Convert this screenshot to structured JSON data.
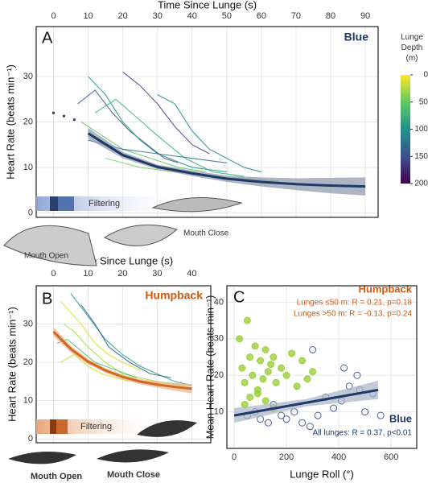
{
  "chart_data": [
    {
      "type": "line",
      "panel": "A",
      "species": "Blue",
      "x_label": "Time Since Lunge (s)",
      "y_label": "Heart Rate (beats min⁻¹)",
      "xlim": [
        -5,
        93.7
      ],
      "xticks": [
        0,
        10,
        20,
        30,
        40,
        50,
        60,
        70,
        80,
        90
      ],
      "ylim": [
        -1,
        41
      ],
      "yticks": [
        0,
        10,
        20,
        30
      ],
      "grid": true,
      "filtering": "Filtering",
      "mouth_open": "Mouth Open",
      "mouth_close": "Mouth Close",
      "fit": {
        "color": "#1f3a66",
        "band_color": "#8a96ad",
        "x": [
          10,
          20,
          30,
          40,
          50,
          60,
          70,
          80,
          90
        ],
        "values": [
          17.5,
          12.7,
          10.1,
          8.7,
          7.5,
          6.8,
          6.3,
          6.0,
          5.8
        ],
        "lower": [
          16.3,
          12.0,
          9.6,
          8.1,
          6.8,
          5.8,
          5.0,
          4.3,
          3.8
        ],
        "upper": [
          18.7,
          13.4,
          10.6,
          9.3,
          8.2,
          7.8,
          7.6,
          7.7,
          7.8
        ]
      },
      "extrapolation": {
        "x": [
          0,
          3,
          6
        ],
        "values": [
          22,
          21.3,
          20.5
        ]
      },
      "traces": [
        {
          "color": "#3b528b",
          "x": [
            7,
            12,
            17,
            22,
            27,
            32,
            36
          ],
          "values": [
            24,
            27,
            22,
            18,
            15,
            12,
            11
          ]
        },
        {
          "color": "#21918c",
          "x": [
            10,
            15,
            20,
            25,
            30,
            40,
            50
          ],
          "values": [
            30,
            26,
            20,
            16,
            13,
            10,
            9
          ]
        },
        {
          "color": "#2fb47c",
          "x": [
            12,
            18,
            24,
            30,
            38,
            46,
            55
          ],
          "values": [
            22,
            25,
            21,
            17,
            12,
            9,
            8
          ]
        },
        {
          "color": "#5ec962",
          "x": [
            8,
            14,
            20,
            28,
            36,
            44
          ],
          "values": [
            20,
            17,
            14,
            12,
            10,
            9
          ]
        },
        {
          "color": "#443983",
          "x": [
            20,
            25,
            30,
            35,
            40,
            45
          ],
          "values": [
            31,
            28,
            24,
            19,
            15,
            13
          ]
        },
        {
          "color": "#25858e",
          "x": [
            30,
            35,
            40,
            45,
            50,
            55,
            60
          ],
          "values": [
            26,
            24,
            18,
            14,
            12,
            10,
            9
          ]
        },
        {
          "color": "#7ad151",
          "x": [
            15,
            25,
            35,
            45,
            55,
            65
          ],
          "values": [
            12,
            10,
            9,
            8,
            7.5,
            7
          ]
        },
        {
          "color": "#2c728e",
          "x": [
            10,
            20,
            30,
            40,
            50
          ],
          "values": [
            16,
            14,
            13,
            12,
            11
          ]
        }
      ],
      "colorbar": {
        "title": "Lunge Depth (m)",
        "lim": [
          0,
          200
        ],
        "ticks": [
          0,
          50,
          100,
          150,
          200
        ],
        "colors": [
          "#fde725",
          "#5ec962",
          "#21918c",
          "#3b528b",
          "#440154"
        ]
      }
    },
    {
      "type": "line",
      "panel": "B",
      "species": "Humpback",
      "x_label": "Time Since Lunge (s)",
      "y_label": "Heart Rate (beats min⁻¹)",
      "xlim": [
        -5,
        45.5
      ],
      "xticks": [
        0,
        10,
        20,
        30,
        40
      ],
      "ylim": [
        -1,
        40
      ],
      "yticks": [
        0,
        10,
        20,
        30
      ],
      "grid": true,
      "filtering": "Filtering",
      "mouth_open": "Mouth Open",
      "mouth_close": "Mouth Close",
      "fit": {
        "color": "#d2691e",
        "band_color": "#e8b48a",
        "x": [
          0,
          5,
          10,
          15,
          20,
          25,
          30,
          35,
          40
        ],
        "values": [
          28,
          23.5,
          20.2,
          17.9,
          16.2,
          15,
          14.2,
          13.6,
          13.1
        ],
        "lower": [
          26.8,
          22.6,
          19.5,
          17.3,
          15.6,
          14.3,
          13.4,
          12.6,
          11.9
        ],
        "upper": [
          29.2,
          24.4,
          20.9,
          18.5,
          16.8,
          15.7,
          15.0,
          14.6,
          14.3
        ]
      },
      "traces": [
        {
          "color": "#d9e021",
          "x": [
            2,
            5,
            8,
            12,
            16,
            20,
            25
          ],
          "values": [
            36,
            33,
            30,
            25,
            22,
            20,
            18
          ]
        },
        {
          "color": "#a0da39",
          "x": [
            3,
            6,
            10,
            15,
            20,
            30,
            38
          ],
          "values": [
            30,
            28,
            24,
            20,
            17,
            15,
            14
          ]
        },
        {
          "color": "#4ac16d",
          "x": [
            1,
            4,
            8,
            12,
            18,
            24
          ],
          "values": [
            25,
            26,
            23,
            20,
            18,
            16
          ]
        },
        {
          "color": "#1fa187",
          "x": [
            5,
            10,
            15,
            20,
            25,
            30,
            35,
            40
          ],
          "values": [
            38,
            32,
            26,
            22,
            19,
            17,
            15,
            14
          ]
        },
        {
          "color": "#c8e020",
          "x": [
            2,
            6,
            10,
            14,
            18,
            22
          ],
          "values": [
            20,
            22,
            19,
            17,
            16,
            15
          ]
        },
        {
          "color": "#365c8d",
          "x": [
            8,
            12,
            16,
            22,
            28,
            34
          ],
          "values": [
            35,
            30,
            24,
            20,
            17,
            16
          ]
        }
      ]
    },
    {
      "type": "scatter",
      "panel": "C",
      "x_label": "Lunge Roll (°)",
      "y_label": "Mean Heart Rate (beats min⁻¹)",
      "xlim": [
        -28,
        698
      ],
      "xticks": [
        0,
        200,
        400,
        600
      ],
      "ylim": [
        0,
        44.5
      ],
      "yticks": [
        10,
        20,
        30,
        40
      ],
      "grid": true,
      "series": [
        {
          "name": "Humpback",
          "color": "#9ccf3a",
          "marker": "filled",
          "stats": [
            "Lunges ≤50 m: R = 0.21, p=0.18",
            "Lunges >50 m: R = -0.13, p=0.24"
          ],
          "x": [
            20,
            30,
            40,
            50,
            60,
            70,
            80,
            90,
            100,
            110,
            120,
            130,
            140,
            150,
            160,
            180,
            200,
            220,
            240,
            260,
            280,
            300,
            40,
            60,
            90,
            120,
            150
          ],
          "values": [
            30,
            22,
            18,
            35,
            25,
            20,
            28,
            15,
            24,
            19,
            27,
            21,
            23,
            25,
            18,
            22,
            20,
            26,
            17,
            24,
            19,
            21,
            12,
            14,
            16,
            13,
            11
          ]
        },
        {
          "name": "Blue",
          "color": "#4a5f9c",
          "marker": "open",
          "stats": [
            "All lunges: R = 0.37, p<0.01"
          ],
          "x": [
            50,
            80,
            100,
            130,
            150,
            180,
            200,
            230,
            260,
            290,
            320,
            350,
            380,
            410,
            440,
            470,
            500,
            530,
            560,
            300,
            420,
            480
          ],
          "values": [
            9,
            10,
            8,
            7,
            12,
            9,
            8,
            10,
            7,
            6,
            9,
            14,
            11,
            13,
            17,
            20,
            10,
            15,
            9,
            27,
            22,
            16
          ]
        }
      ],
      "fit": {
        "color": "#1f3a66",
        "band_color": "#a9b3c6",
        "x": [
          0,
          275,
          550
        ],
        "values": [
          9,
          12.5,
          16
        ],
        "lower": [
          7,
          11.5,
          13.5
        ],
        "upper": [
          11,
          13.5,
          18.5
        ]
      }
    }
  ]
}
